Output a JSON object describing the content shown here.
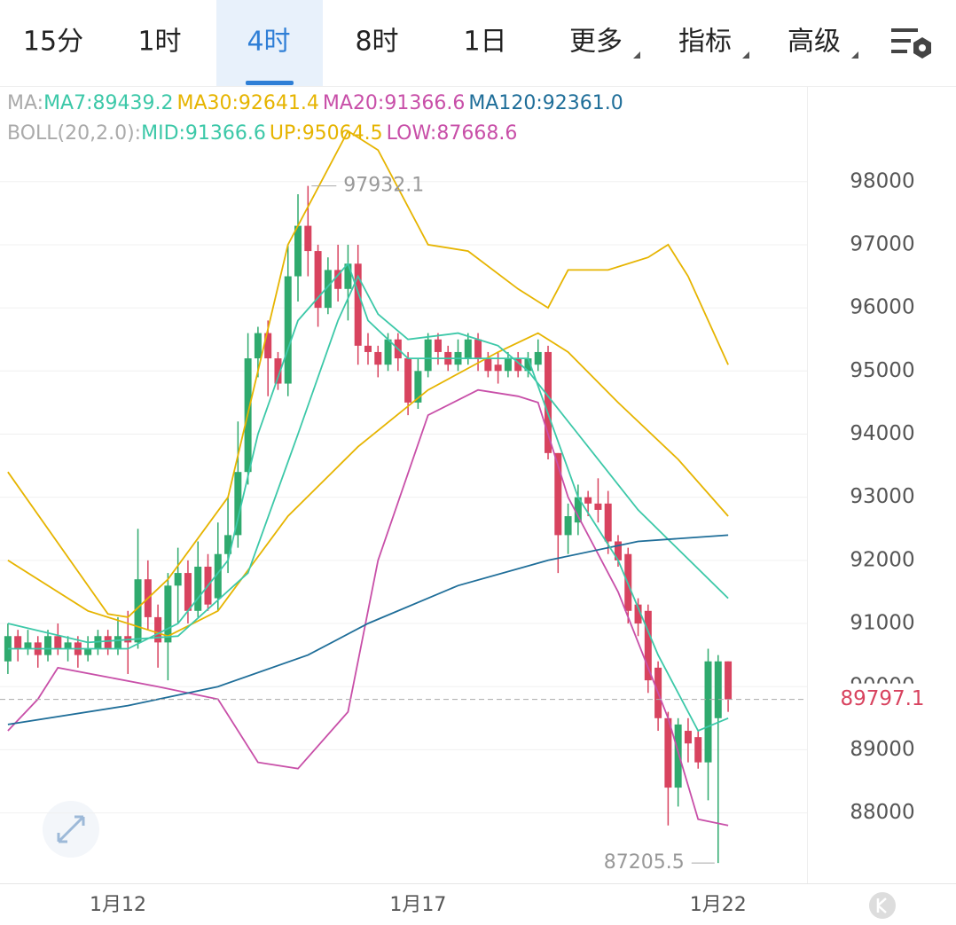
{
  "tabs": [
    "15分",
    "1时",
    "4时",
    "8时",
    "1日",
    "更多",
    "指标",
    "高级"
  ],
  "active_tab": 2,
  "chart_data": {
    "type": "candlestick",
    "ma_legend": {
      "label": "MA:",
      "items": [
        {
          "text": "MA7:89439.2",
          "color": "#3cc8a8"
        },
        {
          "text": "MA30:92641.4",
          "color": "#e6b400"
        },
        {
          "text": "MA20:91366.6",
          "color": "#c84fa8"
        },
        {
          "text": "MA120:92361.0",
          "color": "#1f6e99"
        }
      ]
    },
    "boll_legend": {
      "label": "BOLL(20,2.0):",
      "items": [
        {
          "text": "MID:91366.6",
          "color": "#3cc8a8"
        },
        {
          "text": "UP:95064.5",
          "color": "#e6b400"
        },
        {
          "text": "LOW:87668.6",
          "color": "#c84fa8"
        }
      ]
    },
    "categories": [
      null,
      null,
      null,
      null,
      null,
      null,
      null,
      null,
      null,
      null,
      null,
      "1月12",
      null,
      null,
      null,
      null,
      null,
      null,
      null,
      null,
      null,
      null,
      null,
      null,
      null,
      null,
      null,
      null,
      null,
      null,
      null,
      null,
      null,
      null,
      null,
      null,
      null,
      null,
      null,
      null,
      null,
      "1月17",
      null,
      null,
      null,
      null,
      null,
      null,
      null,
      null,
      null,
      null,
      null,
      null,
      null,
      null,
      null,
      null,
      null,
      null,
      null,
      null,
      null,
      null,
      null,
      null,
      null,
      null,
      null,
      null,
      null,
      "1月22",
      null
    ],
    "candles": {
      "open": [
        90400,
        90800,
        90600,
        90700,
        90500,
        90800,
        90600,
        90700,
        90500,
        90600,
        90800,
        90600,
        90800,
        90700,
        91700,
        91100,
        90700,
        91600,
        91800,
        91200,
        91900,
        91400,
        92100,
        92400,
        93400,
        95200,
        95600,
        95200,
        94800,
        96500,
        97300,
        96900,
        96000,
        96600,
        96300,
        96700,
        95400,
        95300,
        95100,
        95500,
        95200,
        94500,
        95000,
        95500,
        95300,
        95100,
        95200,
        95500,
        95200,
        95100,
        95000,
        95200,
        95000,
        95100,
        95300,
        93700,
        92400,
        92600,
        93000,
        92900,
        92900,
        92300,
        92100,
        91300,
        91200,
        90300,
        89500,
        88400,
        89300,
        89200,
        88800,
        89500,
        90400
      ],
      "high": [
        91000,
        90900,
        90900,
        90800,
        90900,
        91000,
        90800,
        90800,
        90800,
        90900,
        90900,
        91100,
        91200,
        92500,
        92000,
        91300,
        91800,
        92200,
        92000,
        92300,
        92100,
        92600,
        93000,
        94200,
        95600,
        95700,
        95800,
        95300,
        97000,
        97800,
        97932.1,
        97000,
        96800,
        97000,
        97000,
        97000,
        95600,
        95400,
        95600,
        95600,
        95300,
        95200,
        95600,
        95600,
        95400,
        95500,
        95600,
        95600,
        95300,
        95300,
        95300,
        95300,
        95300,
        95500,
        95400,
        93700,
        92900,
        93200,
        93100,
        93300,
        93100,
        92400,
        92200,
        91400,
        91300,
        90400,
        89600,
        89500,
        89500,
        89300,
        90600,
        90500,
        90400
      ],
      "low": [
        90200,
        90400,
        90500,
        90300,
        90400,
        90500,
        90400,
        90300,
        90400,
        90500,
        90500,
        90500,
        90200,
        90600,
        90900,
        90300,
        90100,
        91000,
        91000,
        91100,
        91200,
        91200,
        91800,
        92200,
        93200,
        94900,
        94600,
        94700,
        94600,
        96100,
        96500,
        95700,
        95900,
        96100,
        95800,
        95100,
        95100,
        94900,
        95000,
        95000,
        94300,
        94400,
        94900,
        95100,
        95000,
        95000,
        95100,
        95000,
        94900,
        94800,
        94900,
        94900,
        94900,
        95000,
        93600,
        91800,
        92100,
        92400,
        92700,
        92600,
        92100,
        91900,
        91000,
        90800,
        89900,
        89300,
        87800,
        88100,
        88800,
        88700,
        88200,
        87205.5,
        89600
      ],
      "close": [
        90800,
        90600,
        90700,
        90500,
        90800,
        90600,
        90700,
        90500,
        90600,
        90800,
        90600,
        90800,
        90700,
        91700,
        91100,
        90700,
        91600,
        91800,
        91200,
        91900,
        91300,
        92100,
        92400,
        93400,
        95200,
        95600,
        95200,
        94800,
        96500,
        97300,
        96900,
        96000,
        96600,
        96300,
        96700,
        95400,
        95300,
        95100,
        95500,
        95200,
        94500,
        95000,
        95500,
        95300,
        95100,
        95300,
        95500,
        95200,
        95000,
        95000,
        95200,
        95000,
        95200,
        95300,
        93700,
        92400,
        92700,
        93000,
        92900,
        92800,
        92300,
        92000,
        91200,
        91000,
        90100,
        89500,
        88400,
        89400,
        89100,
        88800,
        90400,
        90400,
        89797.1
      ],
      "up_color": "#2faa6e",
      "down_color": "#d8435f"
    },
    "lines": [
      {
        "color": "#e6b400",
        "x": [
          0,
          10,
          12,
          16,
          22,
          28,
          34,
          37,
          42,
          46,
          51,
          54,
          56,
          60,
          64,
          66,
          68,
          72
        ],
        "values": [
          93400,
          91150,
          91100,
          91700,
          93000,
          97000,
          98800,
          98500,
          97000,
          96900,
          96300,
          96000,
          96600,
          96600,
          96800,
          97000,
          96500,
          95100
        ]
      },
      {
        "color": "#e6b400",
        "x": [
          0,
          8,
          16,
          21,
          28,
          35,
          42,
          49,
          53,
          56,
          61,
          67,
          72
        ],
        "values": [
          92000,
          91200,
          90800,
          91200,
          92700,
          93800,
          94700,
          95300,
          95600,
          95300,
          94500,
          93600,
          92700
        ]
      },
      {
        "color": "#3cc8a8",
        "x": [
          0,
          8,
          17,
          24,
          29,
          33,
          35,
          37,
          40,
          45,
          49,
          52,
          57,
          63,
          72
        ],
        "values": [
          91000,
          90700,
          90800,
          91800,
          94000,
          95800,
          96500,
          95900,
          95500,
          95600,
          95400,
          95000,
          94000,
          92800,
          91400
        ]
      },
      {
        "color": "#c84fa8",
        "x": [
          0,
          3,
          5,
          15,
          21,
          25,
          29,
          34,
          37,
          42,
          47,
          51,
          53,
          56,
          61,
          66,
          69,
          72
        ],
        "values": [
          89300,
          89800,
          90300,
          90000,
          89800,
          88800,
          88700,
          89600,
          92000,
          94300,
          94700,
          94600,
          94500,
          93000,
          91500,
          89500,
          87900,
          87800
        ]
      },
      {
        "color": "#1f6e99",
        "x": [
          0,
          12,
          21,
          30,
          36,
          45,
          54,
          63,
          72
        ],
        "values": [
          89400,
          89700,
          90000,
          90500,
          91000,
          91600,
          92000,
          92300,
          92400
        ]
      },
      {
        "color": "#3cc8a8",
        "x": [
          0,
          12,
          17,
          22,
          25,
          29,
          34,
          36,
          40,
          45,
          52,
          57,
          61,
          65,
          69,
          72
        ],
        "values": [
          90600,
          90600,
          91000,
          92000,
          94000,
          95800,
          96700,
          95800,
          95200,
          95200,
          95200,
          93000,
          92000,
          90500,
          89300,
          89500
        ]
      }
    ],
    "ylim": [
      86884,
      99500
    ],
    "yticks": [
      88000,
      89000,
      90000,
      91000,
      92000,
      93000,
      94000,
      95000,
      96000,
      97000,
      98000
    ],
    "grid": true
  }
}
